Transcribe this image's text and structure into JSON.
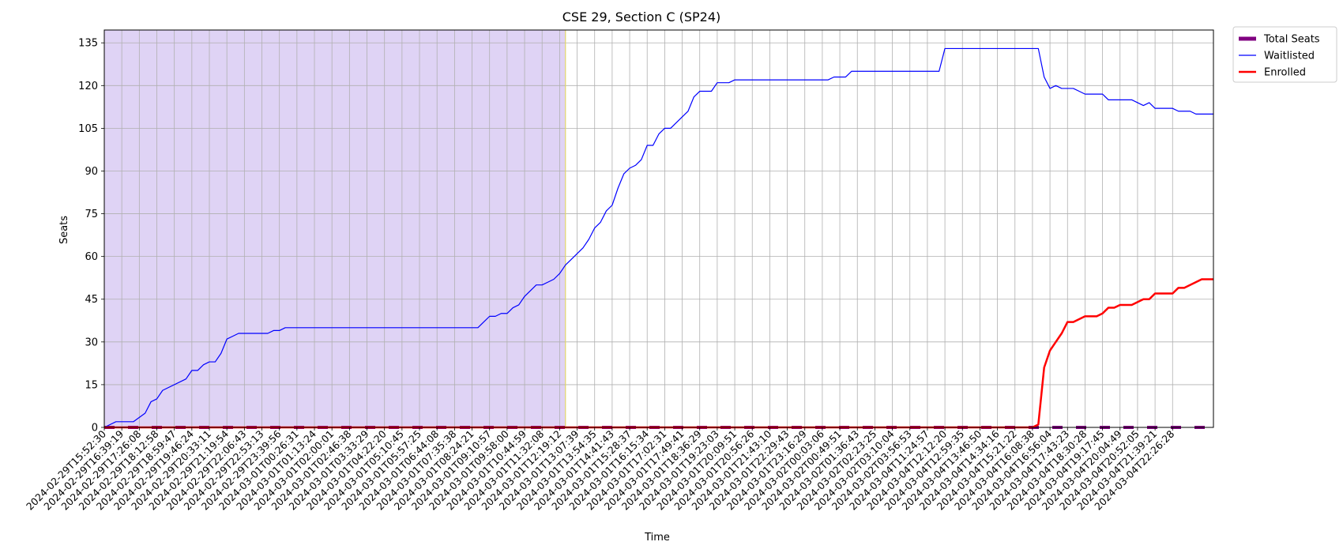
{
  "chart_data": {
    "type": "line",
    "title": "CSE 29, Section C (SP24)",
    "xlabel": "Time",
    "ylabel": "Seats",
    "ylim": [
      0,
      139.5
    ],
    "yticks": [
      0,
      15,
      30,
      45,
      60,
      75,
      90,
      105,
      120,
      135
    ],
    "grid": true,
    "legend_position": "outside-top-right",
    "colors": {
      "shade": "#dfd3f5",
      "marker_line": "#e3d66a",
      "waitlisted": "#0000ff",
      "enrolled": "#ff0000",
      "total_seats": "#800080",
      "grid": "#b0b0b0"
    },
    "x_labels": [
      "2024-02-29T15:52:30",
      "2024-02-29T16:39:19",
      "2024-02-29T17:26:08",
      "2024-02-29T18:12:58",
      "2024-02-29T18:59:47",
      "2024-02-29T19:46:24",
      "2024-02-29T20:33:11",
      "2024-02-29T21:19:54",
      "2024-02-29T22:06:43",
      "2024-02-29T22:53:13",
      "2024-02-29T23:39:56",
      "2024-03-01T00:26:31",
      "2024-03-01T01:13:24",
      "2024-03-01T02:00:01",
      "2024-03-01T02:46:38",
      "2024-03-01T03:33:29",
      "2024-03-01T04:22:20",
      "2024-03-01T05:10:45",
      "2024-03-01T05:57:25",
      "2024-03-01T06:44:08",
      "2024-03-01T07:35:38",
      "2024-03-01T08:24:21",
      "2024-03-01T09:10:57",
      "2024-03-01T09:58:00",
      "2024-03-01T10:44:59",
      "2024-03-01T11:32:08",
      "2024-03-01T12:19:12",
      "2024-03-01T13:07:39",
      "2024-03-01T13:54:35",
      "2024-03-01T14:41:43",
      "2024-03-01T15:28:37",
      "2024-03-01T16:15:34",
      "2024-03-01T17:02:31",
      "2024-03-01T17:49:41",
      "2024-03-01T18:36:29",
      "2024-03-01T19:23:03",
      "2024-03-01T20:09:51",
      "2024-03-01T20:56:26",
      "2024-03-01T21:43:10",
      "2024-03-01T22:29:43",
      "2024-03-01T23:16:29",
      "2024-03-02T00:03:06",
      "2024-03-02T00:49:51",
      "2024-03-02T01:36:43",
      "2024-03-02T02:23:25",
      "2024-03-02T03:10:04",
      "2024-03-02T03:56:53",
      "2024-03-04T11:24:57",
      "2024-03-04T12:12:20",
      "2024-03-04T12:59:35",
      "2024-03-04T13:46:50",
      "2024-03-04T14:34:16",
      "2024-03-04T15:21:22",
      "2024-03-04T16:08:38",
      "2024-03-04T16:56:04",
      "2024-03-04T17:43:23",
      "2024-03-04T18:30:28",
      "2024-03-04T19:17:45",
      "2024-03-04T20:04:49",
      "2024-03-04T20:52:05",
      "2024-03-04T21:39:21",
      "2024-03-04T22:26:28"
    ],
    "x_count": 191,
    "label_step": 3,
    "shade_range": [
      0,
      79
    ],
    "marker_index": 79,
    "series": [
      {
        "name": "Total Seats",
        "style": "dashed",
        "values": [
          [
            0,
            0
          ],
          [
            190,
            0
          ]
        ]
      },
      {
        "name": "Waitlisted",
        "style": "line",
        "values": [
          [
            0,
            0
          ],
          [
            2,
            2
          ],
          [
            5,
            2
          ],
          [
            7,
            5
          ],
          [
            8,
            9
          ],
          [
            9,
            10
          ],
          [
            10,
            13
          ],
          [
            14,
            17
          ],
          [
            15,
            20
          ],
          [
            16,
            20
          ],
          [
            17,
            22
          ],
          [
            18,
            23
          ],
          [
            19,
            23
          ],
          [
            20,
            26
          ],
          [
            21,
            31
          ],
          [
            22,
            32
          ],
          [
            23,
            33
          ],
          [
            28,
            33
          ],
          [
            29,
            34
          ],
          [
            30,
            34
          ],
          [
            31,
            35
          ],
          [
            64,
            35
          ],
          [
            65,
            37
          ],
          [
            66,
            39
          ],
          [
            67,
            39
          ],
          [
            68,
            40
          ],
          [
            69,
            40
          ],
          [
            70,
            42
          ],
          [
            71,
            43
          ],
          [
            72,
            46
          ],
          [
            73,
            48
          ],
          [
            74,
            50
          ],
          [
            75,
            50
          ],
          [
            76,
            51
          ],
          [
            77,
            52
          ],
          [
            78,
            54
          ],
          [
            79,
            57
          ],
          [
            80,
            59
          ],
          [
            81,
            61
          ],
          [
            82,
            63
          ],
          [
            83,
            66
          ],
          [
            84,
            70
          ],
          [
            85,
            72
          ],
          [
            86,
            76
          ],
          [
            87,
            78
          ],
          [
            88,
            84
          ],
          [
            89,
            89
          ],
          [
            90,
            91
          ],
          [
            91,
            92
          ],
          [
            92,
            94
          ],
          [
            93,
            99
          ],
          [
            94,
            99
          ],
          [
            95,
            103
          ],
          [
            96,
            105
          ],
          [
            97,
            105
          ],
          [
            98,
            107
          ],
          [
            99,
            109
          ],
          [
            100,
            111
          ],
          [
            101,
            116
          ],
          [
            102,
            118
          ],
          [
            104,
            118
          ],
          [
            105,
            121
          ],
          [
            107,
            121
          ],
          [
            108,
            122
          ],
          [
            124,
            122
          ],
          [
            125,
            123
          ],
          [
            127,
            123
          ],
          [
            128,
            125
          ],
          [
            143,
            125
          ],
          [
            144,
            133
          ],
          [
            160,
            133
          ],
          [
            161,
            123
          ],
          [
            162,
            119
          ],
          [
            163,
            120
          ],
          [
            164,
            119
          ],
          [
            166,
            119
          ],
          [
            167,
            118
          ],
          [
            168,
            117
          ],
          [
            171,
            117
          ],
          [
            172,
            115
          ],
          [
            176,
            115
          ],
          [
            177,
            114
          ],
          [
            178,
            113
          ],
          [
            179,
            114
          ],
          [
            180,
            112
          ],
          [
            183,
            112
          ],
          [
            184,
            111
          ],
          [
            186,
            111
          ],
          [
            187,
            110
          ],
          [
            190,
            110
          ]
        ]
      },
      {
        "name": "Enrolled",
        "style": "line",
        "values": [
          [
            0,
            0
          ],
          [
            159,
            0
          ],
          [
            160,
            1
          ],
          [
            161,
            21
          ],
          [
            162,
            27
          ],
          [
            163,
            30
          ],
          [
            164,
            33
          ],
          [
            165,
            37
          ],
          [
            166,
            37
          ],
          [
            167,
            38
          ],
          [
            168,
            39
          ],
          [
            170,
            39
          ],
          [
            171,
            40
          ],
          [
            172,
            42
          ],
          [
            173,
            42
          ],
          [
            174,
            43
          ],
          [
            176,
            43
          ],
          [
            177,
            44
          ],
          [
            178,
            45
          ],
          [
            179,
            45
          ],
          [
            180,
            47
          ],
          [
            183,
            47
          ],
          [
            184,
            49
          ],
          [
            185,
            49
          ],
          [
            186,
            50
          ],
          [
            187,
            51
          ],
          [
            188,
            52
          ],
          [
            190,
            52
          ]
        ]
      }
    ]
  }
}
